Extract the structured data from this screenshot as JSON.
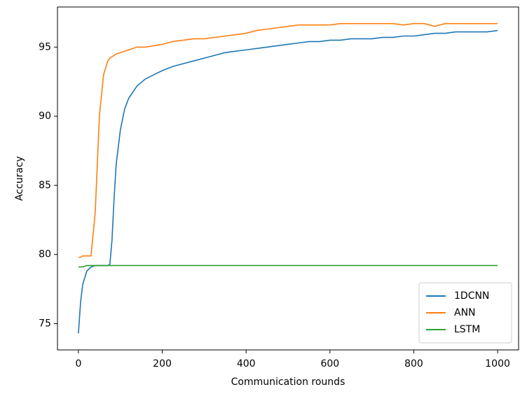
{
  "chart_data": {
    "type": "line",
    "x_label": "Communication rounds",
    "y_label": "Accuracy",
    "x": [
      0,
      5,
      10,
      20,
      30,
      40,
      50,
      60,
      70,
      75,
      80,
      85,
      90,
      100,
      110,
      120,
      140,
      160,
      180,
      200,
      225,
      250,
      275,
      300,
      325,
      350,
      375,
      400,
      425,
      450,
      475,
      500,
      525,
      550,
      575,
      600,
      625,
      650,
      675,
      700,
      725,
      750,
      775,
      800,
      825,
      850,
      875,
      900,
      925,
      950,
      975,
      1000
    ],
    "series": [
      {
        "name": "1DCNN",
        "color": "#1f77b4",
        "values": [
          74.3,
          76.5,
          77.8,
          78.8,
          79.1,
          79.2,
          79.2,
          79.2,
          79.2,
          79.3,
          81,
          84,
          86.5,
          89,
          90.5,
          91.3,
          92.2,
          92.7,
          93,
          93.3,
          93.6,
          93.8,
          94,
          94.2,
          94.4,
          94.6,
          94.7,
          94.8,
          94.9,
          95,
          95.1,
          95.2,
          95.3,
          95.4,
          95.4,
          95.5,
          95.5,
          95.6,
          95.6,
          95.6,
          95.7,
          95.7,
          95.8,
          95.8,
          95.9,
          96,
          96,
          96.1,
          96.1,
          96.1,
          96.1,
          96.2
        ]
      },
      {
        "name": "ANN",
        "color": "#ff7f0e",
        "values": [
          79.8,
          79.8,
          79.9,
          79.9,
          79.9,
          83,
          90,
          93,
          94,
          94.2,
          94.3,
          94.4,
          94.5,
          94.6,
          94.7,
          94.8,
          95,
          95,
          95.1,
          95.2,
          95.4,
          95.5,
          95.6,
          95.6,
          95.7,
          95.8,
          95.9,
          96,
          96.2,
          96.3,
          96.4,
          96.5,
          96.6,
          96.6,
          96.6,
          96.6,
          96.7,
          96.7,
          96.7,
          96.7,
          96.7,
          96.7,
          96.6,
          96.7,
          96.7,
          96.5,
          96.7,
          96.7,
          96.7,
          96.7,
          96.7,
          96.7
        ]
      },
      {
        "name": "LSTM",
        "color": "#2ca02c",
        "values": [
          79.1,
          79.1,
          79.1,
          79.2,
          79.2,
          79.2,
          79.2,
          79.2,
          79.2,
          79.2,
          79.2,
          79.2,
          79.2,
          79.2,
          79.2,
          79.2,
          79.2,
          79.2,
          79.2,
          79.2,
          79.2,
          79.2,
          79.2,
          79.2,
          79.2,
          79.2,
          79.2,
          79.2,
          79.2,
          79.2,
          79.2,
          79.2,
          79.2,
          79.2,
          79.2,
          79.2,
          79.2,
          79.2,
          79.2,
          79.2,
          79.2,
          79.2,
          79.2,
          79.2,
          79.2,
          79.2,
          79.2,
          79.2,
          79.2,
          79.2,
          79.2,
          79.2
        ]
      }
    ],
    "xlim": [
      -50,
      1050
    ],
    "ylim": [
      73.1,
      97.9
    ],
    "xticks": [
      0,
      200,
      400,
      600,
      800,
      1000
    ],
    "yticks": [
      75,
      80,
      85,
      90,
      95
    ],
    "legend": "lower right"
  }
}
